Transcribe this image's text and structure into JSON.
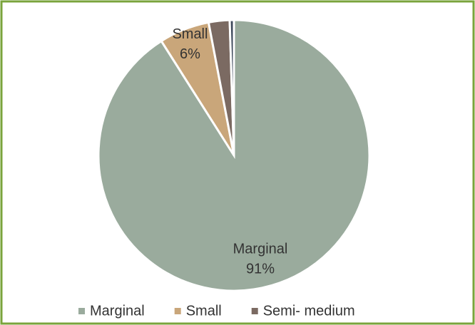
{
  "chart_data": {
    "type": "pie",
    "categories": [
      "Marginal",
      "Small",
      "Semi- medium",
      null
    ],
    "values": [
      91,
      6,
      2.5,
      0.5
    ],
    "value_labels": [
      "91%",
      "6%",
      null,
      null
    ],
    "colors": [
      "#9aab9d",
      "#c9a67a",
      "#7b6a62",
      "#3f4a5c"
    ],
    "legend": "bottom"
  }
}
